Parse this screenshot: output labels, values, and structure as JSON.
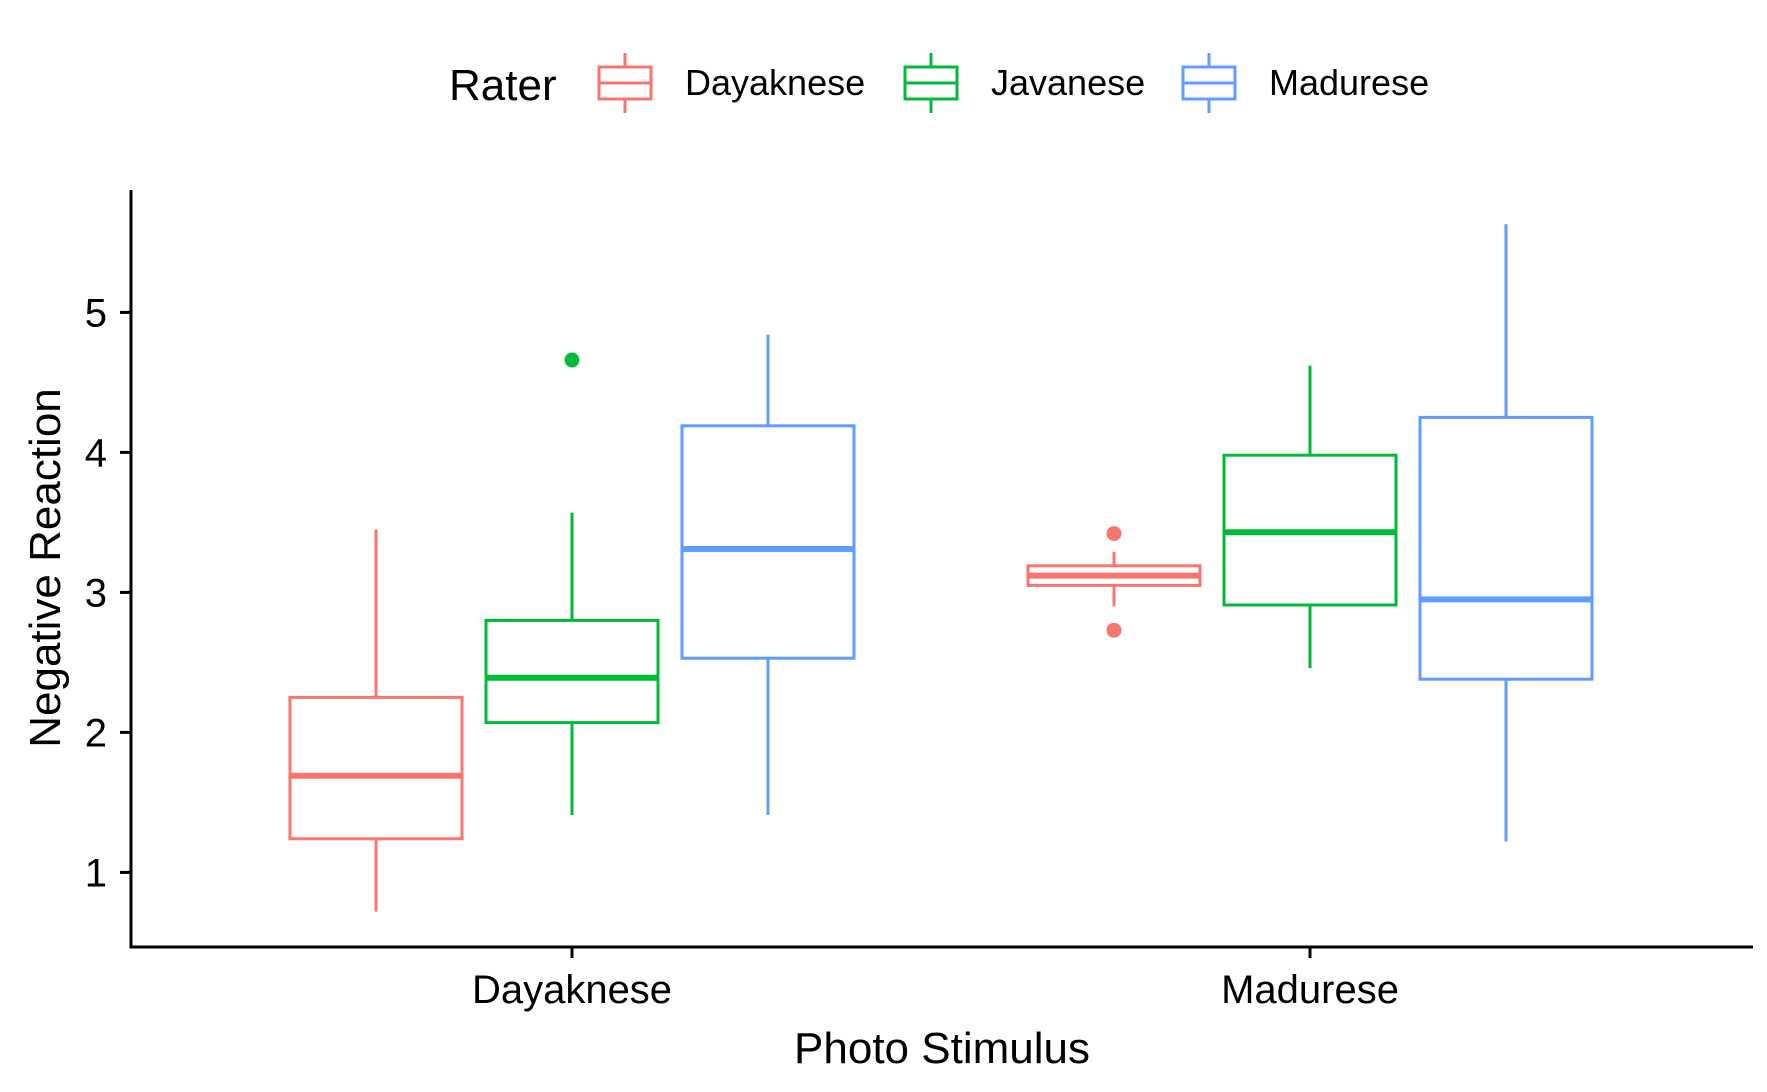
{
  "chart_data": {
    "type": "boxplot",
    "title": "",
    "xlabel": "Photo Stimulus",
    "ylabel": "Negative Reaction",
    "ylim": [
      0.45,
      5.85
    ],
    "yticks": [
      1,
      2,
      3,
      4,
      5
    ],
    "categories": [
      "Dayaknese",
      "Madurese"
    ],
    "grid": false,
    "legend": {
      "title": "Rater",
      "placement": "top",
      "entries": [
        "Dayaknese",
        "Javanese",
        "Madurese"
      ]
    },
    "series": [
      {
        "name": "Dayaknese",
        "color": "#F8766D",
        "boxes": [
          {
            "category": "Dayaknese",
            "whisker_low": 0.72,
            "q1": 1.24,
            "median": 1.69,
            "q3": 2.25,
            "whisker_high": 3.45,
            "outliers": []
          },
          {
            "category": "Madurese",
            "whisker_low": 2.9,
            "q1": 3.05,
            "median": 3.12,
            "q3": 3.19,
            "whisker_high": 3.29,
            "outliers": [
              3.42,
              2.73
            ]
          }
        ]
      },
      {
        "name": "Javanese",
        "color": "#00BA38",
        "boxes": [
          {
            "category": "Dayaknese",
            "whisker_low": 1.41,
            "q1": 2.07,
            "median": 2.39,
            "q3": 2.8,
            "whisker_high": 3.57,
            "outliers": [
              4.66
            ]
          },
          {
            "category": "Madurese",
            "whisker_low": 2.46,
            "q1": 2.91,
            "median": 3.43,
            "q3": 3.98,
            "whisker_high": 4.62,
            "outliers": []
          }
        ]
      },
      {
        "name": "Madurese",
        "color": "#619CFF",
        "boxes": [
          {
            "category": "Dayaknese",
            "whisker_low": 1.41,
            "q1": 2.53,
            "median": 3.31,
            "q3": 4.19,
            "whisker_high": 4.84,
            "outliers": []
          },
          {
            "category": "Madurese",
            "whisker_low": 1.22,
            "q1": 2.38,
            "median": 2.95,
            "q3": 4.25,
            "whisker_high": 5.63,
            "outliers": []
          }
        ]
      }
    ]
  }
}
